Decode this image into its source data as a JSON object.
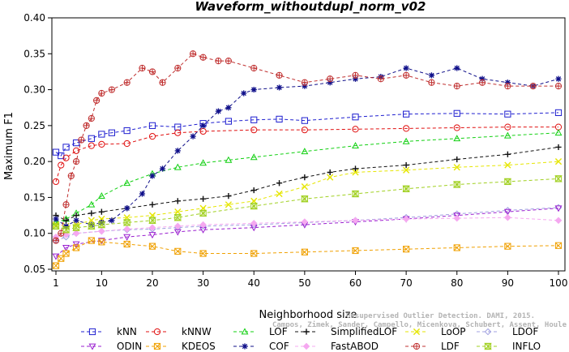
{
  "chart_data": {
    "type": "line",
    "title": "Waveform_withoutdupl_norm_v02",
    "xlabel": "Neighborhood size",
    "ylabel": "Maximum F1",
    "xlim": [
      1,
      100
    ],
    "ylim": [
      0.05,
      0.4
    ],
    "xticks": [
      1,
      10,
      20,
      30,
      40,
      50,
      60,
      70,
      80,
      90,
      100
    ],
    "yticks": [
      0.05,
      0.1,
      0.15,
      0.2,
      0.25,
      0.3,
      0.35,
      0.4
    ],
    "ytick_labels": [
      "0.05",
      "0.10",
      "0.15",
      "0.20",
      "0.25",
      "0.30",
      "0.35",
      "0.40"
    ],
    "legend_position": "bottom",
    "watermark": [
      "Campos, Zimek, Sander, Campello, Micenkova, Schubert, Assent, Houle",
      "Unsupervised Outlier Detection. DAMI, 2015."
    ],
    "series": [
      {
        "name": "kNN",
        "color": "#1f1fd0",
        "marker": "square",
        "x": [
          1,
          2,
          3,
          5,
          8,
          10,
          12,
          15,
          20,
          25,
          30,
          35,
          40,
          45,
          50,
          60,
          70,
          80,
          90,
          100
        ],
        "y": [
          0.213,
          0.208,
          0.22,
          0.226,
          0.232,
          0.238,
          0.24,
          0.243,
          0.25,
          0.248,
          0.253,
          0.256,
          0.258,
          0.259,
          0.257,
          0.262,
          0.266,
          0.267,
          0.266,
          0.268
        ]
      },
      {
        "name": "kNNW",
        "color": "#e01010",
        "marker": "circle",
        "x": [
          1,
          2,
          3,
          5,
          8,
          10,
          15,
          20,
          25,
          30,
          40,
          50,
          60,
          70,
          80,
          90,
          100
        ],
        "y": [
          0.172,
          0.195,
          0.205,
          0.215,
          0.222,
          0.224,
          0.225,
          0.235,
          0.24,
          0.242,
          0.244,
          0.244,
          0.245,
          0.246,
          0.247,
          0.248,
          0.248
        ]
      },
      {
        "name": "LOF",
        "color": "#12d012",
        "marker": "triangle",
        "x": [
          1,
          3,
          5,
          8,
          10,
          15,
          20,
          25,
          30,
          35,
          40,
          50,
          60,
          70,
          80,
          90,
          100
        ],
        "y": [
          0.115,
          0.12,
          0.128,
          0.14,
          0.152,
          0.17,
          0.183,
          0.192,
          0.198,
          0.202,
          0.206,
          0.214,
          0.222,
          0.228,
          0.232,
          0.236,
          0.24
        ]
      },
      {
        "name": "SimplifiedLOF",
        "color": "#111111",
        "marker": "plus",
        "x": [
          1,
          3,
          5,
          8,
          10,
          15,
          20,
          25,
          30,
          35,
          40,
          45,
          50,
          55,
          60,
          70,
          80,
          90,
          100
        ],
        "y": [
          0.125,
          0.118,
          0.125,
          0.128,
          0.13,
          0.135,
          0.14,
          0.145,
          0.148,
          0.152,
          0.16,
          0.17,
          0.178,
          0.185,
          0.19,
          0.195,
          0.203,
          0.21,
          0.22
        ]
      },
      {
        "name": "LoOP",
        "color": "#e6e600",
        "marker": "x",
        "x": [
          1,
          3,
          5,
          8,
          10,
          15,
          20,
          25,
          30,
          35,
          40,
          45,
          50,
          55,
          60,
          70,
          80,
          90,
          100
        ],
        "y": [
          0.112,
          0.11,
          0.112,
          0.118,
          0.12,
          0.122,
          0.125,
          0.13,
          0.135,
          0.14,
          0.145,
          0.155,
          0.165,
          0.178,
          0.185,
          0.188,
          0.192,
          0.195,
          0.2
        ]
      },
      {
        "name": "LDOF",
        "color": "#a0a0e0",
        "marker": "diamond",
        "x": [
          1,
          3,
          5,
          10,
          15,
          20,
          25,
          30,
          40,
          50,
          60,
          70,
          80,
          90,
          100
        ],
        "y": [
          0.09,
          0.095,
          0.1,
          0.103,
          0.105,
          0.106,
          0.108,
          0.11,
          0.112,
          0.115,
          0.118,
          0.122,
          0.127,
          0.132,
          0.136
        ]
      },
      {
        "name": "ODIN",
        "color": "#9a1fd0",
        "marker": "triangle-down",
        "x": [
          1,
          3,
          5,
          10,
          15,
          20,
          25,
          30,
          40,
          50,
          60,
          70,
          80,
          90,
          100
        ],
        "y": [
          0.068,
          0.08,
          0.085,
          0.09,
          0.095,
          0.098,
          0.102,
          0.105,
          0.108,
          0.112,
          0.116,
          0.12,
          0.125,
          0.13,
          0.135
        ]
      },
      {
        "name": "KDEOS",
        "color": "#f0a000",
        "marker": "square-x",
        "x": [
          1,
          2,
          3,
          5,
          8,
          10,
          15,
          20,
          25,
          30,
          40,
          50,
          60,
          70,
          80,
          90,
          100
        ],
        "y": [
          0.055,
          0.065,
          0.072,
          0.08,
          0.09,
          0.088,
          0.085,
          0.082,
          0.075,
          0.072,
          0.072,
          0.074,
          0.076,
          0.078,
          0.08,
          0.082,
          0.083
        ]
      },
      {
        "name": "COF",
        "color": "#10108a",
        "marker": "star",
        "x": [
          1,
          3,
          5,
          8,
          10,
          12,
          15,
          18,
          20,
          22,
          25,
          28,
          30,
          33,
          35,
          38,
          40,
          45,
          50,
          55,
          60,
          65,
          70,
          75,
          80,
          85,
          90,
          95,
          100
        ],
        "y": [
          0.12,
          0.11,
          0.118,
          0.112,
          0.115,
          0.118,
          0.135,
          0.155,
          0.18,
          0.19,
          0.215,
          0.235,
          0.25,
          0.27,
          0.275,
          0.295,
          0.3,
          0.303,
          0.305,
          0.31,
          0.315,
          0.318,
          0.33,
          0.32,
          0.33,
          0.315,
          0.31,
          0.305,
          0.315
        ]
      },
      {
        "name": "FastABOD",
        "color": "#f5a8f0",
        "marker": "diamond-filled",
        "x": [
          1,
          3,
          5,
          10,
          15,
          20,
          25,
          30,
          40,
          50,
          60,
          70,
          80,
          90,
          100
        ],
        "y": [
          0.095,
          0.098,
          0.1,
          0.103,
          0.106,
          0.108,
          0.11,
          0.112,
          0.114,
          0.116,
          0.118,
          0.12,
          0.121,
          0.122,
          0.118
        ]
      },
      {
        "name": "LDF",
        "color": "#c03030",
        "marker": "circle-plus",
        "x": [
          1,
          2,
          3,
          4,
          5,
          6,
          7,
          8,
          9,
          10,
          12,
          15,
          18,
          20,
          22,
          25,
          28,
          30,
          33,
          35,
          40,
          45,
          50,
          55,
          60,
          65,
          70,
          75,
          80,
          85,
          90,
          95,
          100
        ],
        "y": [
          0.09,
          0.1,
          0.14,
          0.18,
          0.2,
          0.23,
          0.25,
          0.26,
          0.285,
          0.295,
          0.3,
          0.31,
          0.33,
          0.325,
          0.31,
          0.33,
          0.35,
          0.345,
          0.34,
          0.34,
          0.33,
          0.32,
          0.31,
          0.315,
          0.32,
          0.315,
          0.32,
          0.31,
          0.305,
          0.31,
          0.305,
          0.305,
          0.305
        ]
      },
      {
        "name": "INFLO",
        "color": "#a0d020",
        "marker": "hourglass",
        "x": [
          1,
          3,
          5,
          8,
          10,
          15,
          20,
          25,
          30,
          40,
          50,
          60,
          70,
          80,
          90,
          100
        ],
        "y": [
          0.11,
          0.105,
          0.108,
          0.11,
          0.112,
          0.115,
          0.118,
          0.122,
          0.128,
          0.138,
          0.148,
          0.155,
          0.162,
          0.168,
          0.172,
          0.176
        ]
      }
    ]
  }
}
